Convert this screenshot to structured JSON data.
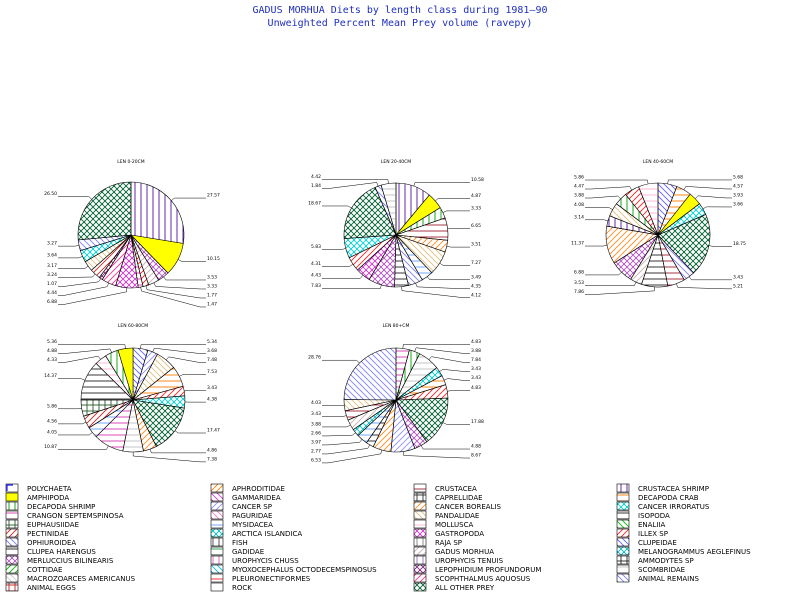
{
  "title": "GADUS MORHUA Diets by length class during 1981—90",
  "subtitle": "Unweighted Percent Mean Prey volume (ravepy)",
  "chart_data": [
    {
      "type": "pie",
      "title": "LEN 0-20CM",
      "slices": [
        {
          "category": "CRUSTACEA SHRIMP",
          "value": 27.57
        },
        {
          "category": "AMPHIPODA",
          "value": 10.15
        },
        {
          "category": "MERLUCCIUS BILINEARIS",
          "value": 3.53
        },
        {
          "category": "GADUS MORHUA",
          "value": 3.33
        },
        {
          "category": "ILLEX SP",
          "value": 1.77
        },
        {
          "category": "CRANGON SEPTEMSPINOSA",
          "value": 1.47
        },
        {
          "category": "GASTROPODA",
          "value": 6.88
        },
        {
          "category": "SCOPHTHALMUS AQUOSUS",
          "value": 4.44
        },
        {
          "category": "LEPOPHIDIUM PROFUNDORUM",
          "value": 1.07
        },
        {
          "category": "PECTINIDAE",
          "value": 3.24
        },
        {
          "category": "PANDALIDAE",
          "value": 3.17
        },
        {
          "category": "CANCER IRRORATUS",
          "value": 3.64
        },
        {
          "category": "ANIMAL REMAINS",
          "value": 3.27
        },
        {
          "category": "ALL OTHER PREY",
          "value": 26.5
        }
      ]
    },
    {
      "type": "pie",
      "title": "LEN 20-40CM",
      "slices": [
        {
          "category": "CRUSTACEA SHRIMP",
          "value": 10.58
        },
        {
          "category": "AMPHIPODA",
          "value": 4.87
        },
        {
          "category": "DECAPODA SHRIMP",
          "value": 3.33
        },
        {
          "category": "CRUSTACEA",
          "value": 6.65
        },
        {
          "category": "CANCER BOREALIS",
          "value": 3.51
        },
        {
          "category": "PANDALIDAE",
          "value": 7.27
        },
        {
          "category": "MYSIDACEA",
          "value": 3.49
        },
        {
          "category": "OPHIUROIDEA",
          "value": 4.35
        },
        {
          "category": "CLUPEA HARENGUS",
          "value": 4.12
        },
        {
          "category": "MERLUCCIUS BILINEARIS",
          "value": 7.83
        },
        {
          "category": "GASTROPODA",
          "value": 4.43
        },
        {
          "category": "ILLEX SP",
          "value": 4.31
        },
        {
          "category": "CANCER IRRORATUS",
          "value": 5.83
        },
        {
          "category": "ALL OTHER PREY",
          "value": 18.67
        },
        {
          "category": "ANIMAL REMAINS",
          "value": 1.84
        },
        {
          "category": "SCOMBRIDAE",
          "value": 4.42
        }
      ]
    },
    {
      "type": "pie",
      "title": "LEN 40-60CM",
      "slices": [
        {
          "category": "CLUPEIDAE",
          "value": 5.68
        },
        {
          "category": "DECAPODA CRAB",
          "value": 4.57
        },
        {
          "category": "AMPHIPODA",
          "value": 3.93
        },
        {
          "category": "CANCER IRRORATUS",
          "value": 3.66
        },
        {
          "category": "ALL OTHER PREY",
          "value": 18.75
        },
        {
          "category": "ANIMAL REMAINS",
          "value": 3.43
        },
        {
          "category": "CRUSTACEA",
          "value": 5.21
        },
        {
          "category": "CLUPEA HARENGUS",
          "value": 7.86
        },
        {
          "category": "GADUS MORHUA",
          "value": 3.53
        },
        {
          "category": "MERLUCCIUS BILINEARIS",
          "value": 6.88
        },
        {
          "category": "CANCER BOREALIS",
          "value": 11.37
        },
        {
          "category": "CRUSTACEA SHRIMP",
          "value": 3.14
        },
        {
          "category": "PANDALIDAE",
          "value": 4.08
        },
        {
          "category": "DECAPODA SHRIMP",
          "value": 3.88
        },
        {
          "category": "ILLEX SP",
          "value": 4.47
        },
        {
          "category": "MOLLUSCA",
          "value": 5.86
        }
      ]
    },
    {
      "type": "pie",
      "title": "LEN 60-80CM",
      "slices": [
        {
          "category": "CLUPEIDAE",
          "value": 5.34
        },
        {
          "category": "CANCER SP",
          "value": 3.68
        },
        {
          "category": "PANDALIDAE",
          "value": 7.48
        },
        {
          "category": "DECAPODA CRAB",
          "value": 7.53
        },
        {
          "category": "ILLEX SP",
          "value": 3.43
        },
        {
          "category": "CANCER IRRORATUS",
          "value": 4.38
        },
        {
          "category": "ALL OTHER PREY",
          "value": 17.47
        },
        {
          "category": "CANCER BOREALIS",
          "value": 4.86
        },
        {
          "category": "SCOMBRIDAE",
          "value": 7.38
        },
        {
          "category": "CRANGON SEPTEMSPINOSA",
          "value": 10.87
        },
        {
          "category": "MYSIDACEA",
          "value": 4.05
        },
        {
          "category": "PECTINIDAE",
          "value": 4.56
        },
        {
          "category": "EUPHAUSIIDAE",
          "value": 5.86
        },
        {
          "category": "CLUPEA HARENGUS",
          "value": 14.37
        },
        {
          "category": "MOLLUSCA",
          "value": 4.33
        },
        {
          "category": "DECAPODA SHRIMP",
          "value": 4.88
        },
        {
          "category": "AMPHIPODA",
          "value": 5.36
        }
      ]
    },
    {
      "type": "pie",
      "title": "LEN 80+CM",
      "slices": [
        {
          "category": "CRANGON SEPTEMSPINOSA",
          "value": 4.83
        },
        {
          "category": "DECAPODA SHRIMP",
          "value": 3.88
        },
        {
          "category": "SCOMBRIDAE",
          "value": 7.84
        },
        {
          "category": "CANCER IRRORATUS",
          "value": 3.43
        },
        {
          "category": "DECAPODA CRAB",
          "value": 3.43
        },
        {
          "category": "ILLEX SP",
          "value": 4.83
        },
        {
          "category": "ALL OTHER PREY",
          "value": 17.88
        },
        {
          "category": "MERLUCCIUS BILINEARIS",
          "value": 4.88
        },
        {
          "category": "CANCER SP",
          "value": 8.67
        },
        {
          "category": "CANCER BOREALIS",
          "value": 6.53
        },
        {
          "category": "CLUPEA HARENGUS",
          "value": 2.77
        },
        {
          "category": "MYSIDACEA",
          "value": 3.97
        },
        {
          "category": "ARCTICA ISLANDICA",
          "value": 2.66
        },
        {
          "category": "GADUS MORHUA",
          "value": 3.88
        },
        {
          "category": "CRUSTACEA",
          "value": 3.43
        },
        {
          "category": "PANDALIDAE",
          "value": 4.03
        },
        {
          "category": "ANIMAL REMAINS",
          "value": 28.76
        }
      ]
    }
  ],
  "legend": [
    {
      "label": "POLYCHAETA",
      "color": "#1a1aff",
      "pattern": "corner"
    },
    {
      "label": "AMPHIPODA",
      "color": "#ffff00",
      "pattern": "solid"
    },
    {
      "label": "DECAPODA SHRIMP",
      "color": "#00a000",
      "pattern": "vlines"
    },
    {
      "label": "CRANGON SEPTEMSPINOSA",
      "color": "#d43ab0",
      "pattern": "hlines"
    },
    {
      "label": "EUPHAUSIIDAE",
      "color": "#2a5a2a",
      "pattern": "cross"
    },
    {
      "label": "PECTINIDAE",
      "color": "#cc2020",
      "pattern": "diagup"
    },
    {
      "label": "OPHIUROIDEA",
      "color": "#8080e0",
      "pattern": "diagdown"
    },
    {
      "label": "CLUPEA HARENGUS",
      "color": "#202020",
      "pattern": "hlines"
    },
    {
      "label": "MERLUCCIUS BILINEARIS",
      "color": "#b050c0",
      "pattern": "crosshatch"
    },
    {
      "label": "COTTIDAE",
      "color": "#00b000",
      "pattern": "diagup"
    },
    {
      "label": "MACROZOARCES AMERICANUS",
      "color": "#c8c8c8",
      "pattern": "diagdown"
    },
    {
      "label": "ANIMAL EGGS",
      "color": "#c02020",
      "pattern": "cross"
    },
    {
      "label": "APHRODITIDAE",
      "color": "#ff8000",
      "pattern": "diagup"
    },
    {
      "label": "GAMMARIDEA",
      "color": "#d040d0",
      "pattern": "diagdown"
    },
    {
      "label": "CANCER SP",
      "color": "#9090ff",
      "pattern": "diagup"
    },
    {
      "label": "PAGURIDAE",
      "color": "#ff7fbf",
      "pattern": "diagdown"
    },
    {
      "label": "MYSIDACEA",
      "color": "#60a0ff",
      "pattern": "hlines"
    },
    {
      "label": "ARCTICA ISLANDICA",
      "color": "#00c0c0",
      "pattern": "crosshatch"
    },
    {
      "label": "FISH",
      "color": "#404040",
      "pattern": "vlines"
    },
    {
      "label": "GADIDAE",
      "color": "#20a040",
      "pattern": "hlines"
    },
    {
      "label": "UROPHYCIS CHUSS",
      "color": "#e060c0",
      "pattern": "vlines"
    },
    {
      "label": "MYOXOCEPHALUS OCTODECEMSPINOSUS",
      "color": "#00c0e0",
      "pattern": "diagdown"
    },
    {
      "label": "PLEURONECTIFORMES",
      "color": "#ff2020",
      "pattern": "hlines"
    },
    {
      "label": "ROCK",
      "color": "#202020",
      "pattern": "none"
    },
    {
      "label": "CRUSTACEA",
      "color": "#a02030",
      "pattern": "hlines"
    },
    {
      "label": "CAPRELLIDAE",
      "color": "#303030",
      "pattern": "cross"
    },
    {
      "label": "CANCER BOREALIS",
      "color": "#ff8c20",
      "pattern": "diagup"
    },
    {
      "label": "PANDALIDAE",
      "color": "#e0c080",
      "pattern": "diagdown"
    },
    {
      "label": "MOLLUSCA",
      "color": "#ffb0d0",
      "pattern": "hlines"
    },
    {
      "label": "GASTROPODA",
      "color": "#d030d0",
      "pattern": "crosshatch"
    },
    {
      "label": "RAJA SP",
      "color": "#808080",
      "pattern": "vlines"
    },
    {
      "label": "GADUS MORHUA",
      "color": "#c8b0b0",
      "pattern": "diagup"
    },
    {
      "label": "UROPHYCIS TENUIS",
      "color": "#9070c0",
      "pattern": "vlines"
    },
    {
      "label": "LEPOPHIDIUM PROFUNDORUM",
      "color": "#802080",
      "pattern": "crosshatch"
    },
    {
      "label": "SCOPHTHALMUS AQUOSUS",
      "color": "#ff3090",
      "pattern": "diagup"
    },
    {
      "label": "ALL OTHER PREY",
      "color": "#006030",
      "pattern": "crosshatch"
    },
    {
      "label": "CRUSTACEA SHRIMP",
      "color": "#5010a0",
      "pattern": "vlines"
    },
    {
      "label": "DECAPODA CRAB",
      "color": "#ff7a00",
      "pattern": "hlines"
    },
    {
      "label": "CANCER IRRORATUS",
      "color": "#00d0d0",
      "pattern": "crosshatch"
    },
    {
      "label": "ISOPODA",
      "color": "#202020",
      "pattern": "hlines"
    },
    {
      "label": "ENALIIA",
      "color": "#00c000",
      "pattern": "diagdown"
    },
    {
      "label": "ILLEX SP",
      "color": "#ff2020",
      "pattern": "diagup"
    },
    {
      "label": "CLUPEIDAE",
      "color": "#6060ff",
      "pattern": "diagdown"
    },
    {
      "label": "MELANOGRAMMUS AEGLEFINUS",
      "color": "#00b8c8",
      "pattern": "crosshatch"
    },
    {
      "label": "AMMODYTES SP",
      "color": "#202020",
      "pattern": "cross"
    },
    {
      "label": "SCOMBRIDAE",
      "color": "#c0c0c0",
      "pattern": "hlines"
    },
    {
      "label": "ANIMAL REMAINS",
      "color": "#8080ff",
      "pattern": "diagdown"
    }
  ]
}
